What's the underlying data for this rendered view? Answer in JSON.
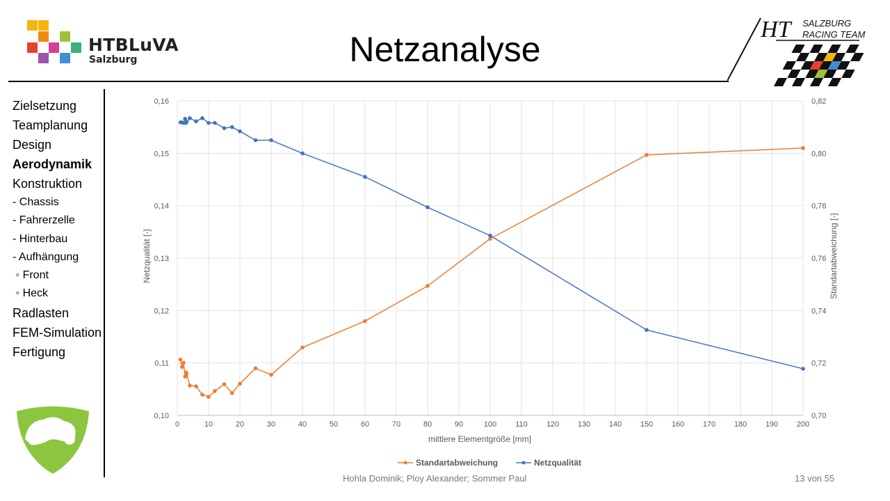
{
  "header": {
    "title": "Netzanalyse",
    "school_logo": {
      "name": "HTBLuVA",
      "subtitle": "Salzburg"
    },
    "team_logo": {
      "mark": "HT",
      "line1": "SALZBURG",
      "line2": "RACING TEAM"
    }
  },
  "nav": {
    "items": [
      {
        "label": "Zielsetzung",
        "type": "main",
        "active": false
      },
      {
        "label": "Teamplanung",
        "type": "main",
        "active": false
      },
      {
        "label": "Design",
        "type": "main",
        "active": false
      },
      {
        "label": "Aerodynamik",
        "type": "main",
        "active": true
      },
      {
        "label": "Konstruktion",
        "type": "main",
        "active": false
      },
      {
        "label": "- Chassis",
        "type": "sub",
        "active": false
      },
      {
        "label": "- Fahrerzelle",
        "type": "sub",
        "active": false
      },
      {
        "label": "- Hinterbau",
        "type": "sub",
        "active": false
      },
      {
        "label": "- Aufhängung",
        "type": "sub",
        "active": false
      },
      {
        "label": " ◦ Front",
        "type": "sub",
        "active": false
      },
      {
        "label": " ◦ Heck",
        "type": "sub",
        "active": false
      },
      {
        "label": "Radlasten",
        "type": "main",
        "active": false
      },
      {
        "label": "FEM-Simulation",
        "type": "main",
        "active": false
      },
      {
        "label": "Fertigung",
        "type": "main",
        "active": false
      }
    ]
  },
  "footer": {
    "names": "Hohla Dominik; Ploy Alexander; Sommer Paul",
    "page": "13 von 55"
  },
  "colors": {
    "orange": "#ed7d31",
    "blue": "#4472c4",
    "grid": "#e3e3e3",
    "axis_text": "#595959",
    "logo_green": "#8cc63f"
  },
  "chart_data": {
    "type": "line",
    "xlabel": "mittlere Elementgröße [mm]",
    "ylabel_left": "Netzqualität [-]",
    "ylabel_right": "Standartabweichung [-]",
    "xlim": [
      0,
      200
    ],
    "x_ticks": [
      0,
      10,
      20,
      30,
      40,
      50,
      60,
      70,
      80,
      90,
      100,
      110,
      120,
      130,
      140,
      150,
      160,
      170,
      180,
      190,
      200
    ],
    "ylim_left": [
      0.1,
      0.16
    ],
    "y_ticks_left": [
      "0,10",
      "0,11",
      "0,12",
      "0,13",
      "0,14",
      "0,15",
      "0,16"
    ],
    "ylim_right": [
      0.7,
      0.82
    ],
    "y_ticks_right": [
      "0,70",
      "0,72",
      "0,74",
      "0,76",
      "0,78",
      "0,80",
      "0,82"
    ],
    "grid": true,
    "legend_position": "bottom",
    "series": [
      {
        "name": "Standartabweichung",
        "axis": "right",
        "color": "#ed7d31",
        "points": [
          [
            1.0,
            0.7213
          ],
          [
            1.5,
            0.7185
          ],
          [
            2.0,
            0.7201
          ],
          [
            2.5,
            0.7148
          ],
          [
            2.8,
            0.7164
          ],
          [
            3.0,
            0.7158
          ],
          [
            4.0,
            0.7114
          ],
          [
            6.0,
            0.7111
          ],
          [
            8.0,
            0.7079
          ],
          [
            10.0,
            0.7071
          ],
          [
            12.0,
            0.7093
          ],
          [
            15.0,
            0.7119
          ],
          [
            17.5,
            0.7085
          ],
          [
            20.0,
            0.7121
          ],
          [
            25.0,
            0.718
          ],
          [
            30.0,
            0.7155
          ],
          [
            40.0,
            0.7259
          ],
          [
            60.0,
            0.736
          ],
          [
            80.0,
            0.7494
          ],
          [
            100.0,
            0.7674
          ],
          [
            150.0,
            0.7994
          ],
          [
            200.0,
            0.802
          ]
        ]
      },
      {
        "name": "Netzqualität",
        "axis": "left",
        "color": "#4472c4",
        "points": [
          [
            1.0,
            0.1559
          ],
          [
            1.5,
            0.1559
          ],
          [
            2.0,
            0.1558
          ],
          [
            2.5,
            0.1566
          ],
          [
            2.8,
            0.1558
          ],
          [
            3.0,
            0.156
          ],
          [
            4.0,
            0.1567
          ],
          [
            6.0,
            0.1561
          ],
          [
            8.0,
            0.1567
          ],
          [
            10.0,
            0.1558
          ],
          [
            12.0,
            0.1558
          ],
          [
            15.0,
            0.1548
          ],
          [
            17.5,
            0.155
          ],
          [
            20.0,
            0.1542
          ],
          [
            25.0,
            0.1525
          ],
          [
            30.0,
            0.1525
          ],
          [
            40.0,
            0.15
          ],
          [
            60.0,
            0.1455
          ],
          [
            80.0,
            0.1397
          ],
          [
            100.0,
            0.1343
          ],
          [
            150.0,
            0.1163
          ],
          [
            200.0,
            0.1089
          ]
        ]
      }
    ]
  }
}
